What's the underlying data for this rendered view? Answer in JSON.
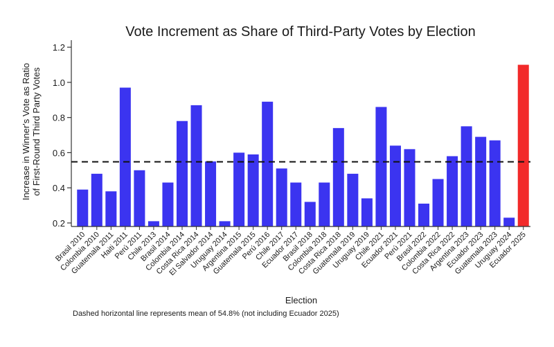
{
  "chart_data": {
    "type": "bar",
    "title": "Vote Increment as Share of Third-Party Votes by Election",
    "xlabel": "Election",
    "ylabel_line1": "Increase in Winner's Vote as Ratio",
    "ylabel_line2": "of First-Round Third Party Votes",
    "ylim": [
      0.18,
      1.24
    ],
    "yticks": [
      "0.2",
      "0.4",
      "0.6",
      "0.8",
      "1.0",
      "1.2"
    ],
    "grid": false,
    "categories": [
      "Brasil 2010",
      "Colombia 2010",
      "Guatemala 2011",
      "Haiti 2011",
      "Perú 2011",
      "Chile 2013",
      "Brasil 2014",
      "Colombia 2014",
      "Costa Rica 2014",
      "El Salvador 2014",
      "Uruguay 2014",
      "Argentina 2015",
      "Guatemala 2015",
      "Perú 2016",
      "Chile 2017",
      "Ecuador 2017",
      "Brasil 2018",
      "Colombia 2018",
      "Costa Rica 2018",
      "Guatemala 2019",
      "Uruguay 2019",
      "Chile 2021",
      "Ecuador 2021",
      "Perú 2021",
      "Brasil 2022",
      "Colombia 2022",
      "Costa Rica 2022",
      "Argentina 2023",
      "Ecuador 2023",
      "Guatemala 2023",
      "Uruguay 2024",
      "Ecuador 2025"
    ],
    "values": [
      0.39,
      0.48,
      0.38,
      0.97,
      0.5,
      0.21,
      0.43,
      0.78,
      0.87,
      0.55,
      0.21,
      0.6,
      0.59,
      0.89,
      0.51,
      0.43,
      0.32,
      0.43,
      0.74,
      0.48,
      0.34,
      0.86,
      0.64,
      0.62,
      0.31,
      0.45,
      0.58,
      0.75,
      0.69,
      0.67,
      0.23,
      1.1
    ],
    "highlight": "Ecuador 2025",
    "mean_line": 0.548,
    "note": "Dashed horizontal line represents mean of 54.8% (not including Ecuador 2025)",
    "colors": {
      "bar": "#3b34f0",
      "highlight": "#f22a2a",
      "axis": "#333333"
    }
  }
}
